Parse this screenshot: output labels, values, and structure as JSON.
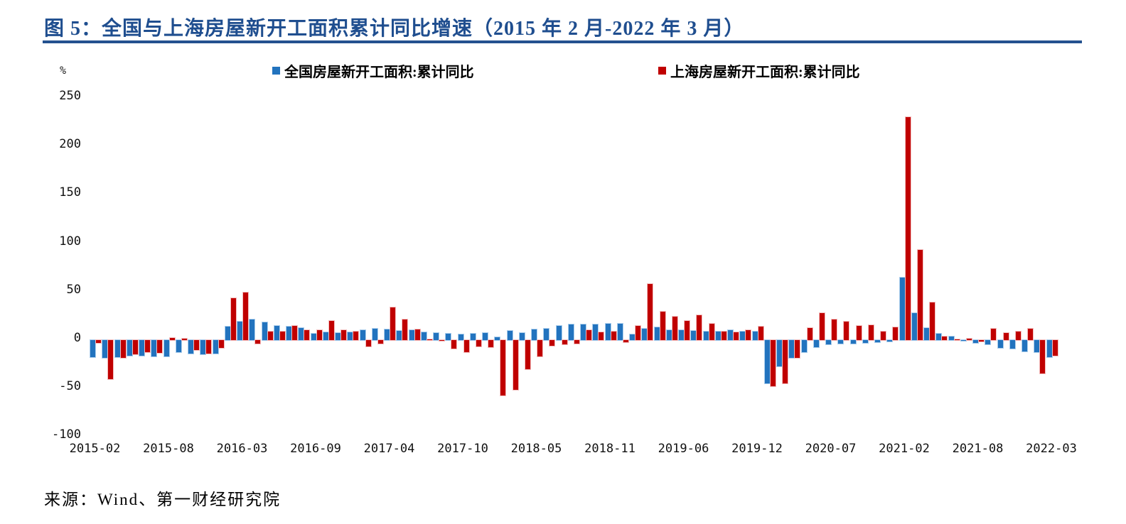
{
  "figure": {
    "title": "图 5：全国与上海房屋新开工面积累计同比增速（2015 年 2 月-2022 年 3 月）",
    "title_color": "#1F4E8F",
    "rule_color": "#24518F",
    "unit_label": "%",
    "source": "来源：Wind、第一财经研究院"
  },
  "legend": [
    {
      "label": "全国房屋新开工面积:累计同比",
      "color": "#2273BE"
    },
    {
      "label": "上海房屋新开工面积:累计同比",
      "color": "#C00000"
    }
  ],
  "chart_data": {
    "type": "bar",
    "title": "全国与上海房屋新开工面积累计同比增速（2015年2月-2022年3月）",
    "xlabel": "",
    "ylabel": "%",
    "ylim": [
      -100,
      250
    ],
    "yticks": [
      250,
      200,
      150,
      100,
      50,
      0,
      -50,
      -100
    ],
    "grid": false,
    "legend_position": "top",
    "categories": [
      "2015-02",
      "2015-03",
      "2015-04",
      "2015-05",
      "2015-06",
      "2015-07",
      "2015-08",
      "2015-09",
      "2015-10",
      "2015-11",
      "2015-12",
      "2016-02",
      "2016-03",
      "2016-04",
      "2016-05",
      "2016-06",
      "2016-07",
      "2016-08",
      "2016-09",
      "2016-10",
      "2016-11",
      "2016-12",
      "2017-02",
      "2017-03",
      "2017-04",
      "2017-05",
      "2017-06",
      "2017-07",
      "2017-08",
      "2017-09",
      "2017-10",
      "2017-11",
      "2017-12",
      "2018-02",
      "2018-03",
      "2018-04",
      "2018-05",
      "2018-06",
      "2018-07",
      "2018-08",
      "2018-09",
      "2018-10",
      "2018-11",
      "2018-12",
      "2019-02",
      "2019-03",
      "2019-04",
      "2019-05",
      "2019-06",
      "2019-07",
      "2019-08",
      "2019-09",
      "2019-10",
      "2019-11",
      "2019-12",
      "2020-02",
      "2020-03",
      "2020-04",
      "2020-05",
      "2020-06",
      "2020-07",
      "2020-08",
      "2020-09",
      "2020-10",
      "2020-11",
      "2020-12",
      "2021-02",
      "2021-03",
      "2021-04",
      "2021-05",
      "2021-06",
      "2021-07",
      "2021-08",
      "2021-09",
      "2021-10",
      "2021-11",
      "2021-12",
      "2022-02",
      "2022-03"
    ],
    "xtick_labels": [
      "2015-02",
      "2015-08",
      "2016-03",
      "2016-09",
      "2017-04",
      "2017-10",
      "2018-05",
      "2018-11",
      "2019-06",
      "2019-12",
      "2020-07",
      "2021-02",
      "2021-08",
      "2022-03"
    ],
    "xtick_indices": [
      0,
      6,
      12,
      18,
      24,
      30,
      36,
      42,
      48,
      54,
      60,
      66,
      72,
      78
    ],
    "series": [
      {
        "name": "全国房屋新开工面积:累计同比",
        "color": "#2273BE",
        "values": [
          -17.7,
          -18.4,
          -17.3,
          -16.0,
          -15.8,
          -16.8,
          -16.8,
          -12.6,
          -13.9,
          -14.7,
          -14.0,
          13.7,
          19.2,
          21.4,
          18.3,
          14.9,
          13.7,
          12.2,
          6.8,
          8.1,
          7.6,
          8.1,
          10.4,
          11.6,
          11.1,
          9.5,
          10.6,
          8.0,
          7.6,
          6.8,
          5.6,
          6.9,
          7.0,
          2.9,
          9.7,
          7.3,
          10.8,
          11.8,
          14.4,
          15.9,
          16.4,
          16.3,
          16.8,
          17.2,
          6.0,
          11.9,
          13.1,
          10.5,
          10.1,
          9.5,
          8.9,
          8.6,
          10.0,
          8.6,
          8.5,
          -44.9,
          -27.2,
          -18.4,
          -12.8,
          -7.6,
          -4.5,
          -3.6,
          -3.4,
          -2.6,
          -2.0,
          -1.2,
          64.3,
          28.2,
          12.8,
          6.9,
          3.6,
          -0.9,
          -3.2,
          -4.5,
          -7.7,
          -9.1,
          -11.4,
          -12.2,
          -17.5
        ]
      },
      {
        "name": "上海房屋新开工面积:累计同比",
        "color": "#C00000",
        "values": [
          -3,
          -40.5,
          -18,
          -15,
          -12.5,
          -13,
          2,
          1.5,
          -10,
          -14,
          -8,
          43,
          49,
          -4,
          9,
          8.5,
          15,
          10.5,
          10,
          20,
          10.5,
          9,
          -6.5,
          -3.5,
          34,
          21,
          11,
          1,
          -1,
          -9,
          -12.5,
          -6.5,
          -7,
          -57,
          -51.5,
          -30,
          -17,
          -6,
          -4.5,
          -3.5,
          10.5,
          8,
          9,
          -2.5,
          15,
          58,
          29,
          24,
          19.5,
          26,
          16.5,
          8.5,
          8,
          10.5,
          14,
          -47.5,
          -45,
          -18.5,
          12.5,
          28,
          21.5,
          19,
          15,
          15.3,
          8.5,
          13,
          230,
          93,
          39,
          4,
          1,
          1.5,
          -1.5,
          11.4,
          7.5,
          9,
          12,
          -34.5,
          -15.8
        ]
      }
    ]
  },
  "layout_colors": {
    "national_border": "#AACDEC",
    "shanghai_border": "#F3BDBD"
  }
}
